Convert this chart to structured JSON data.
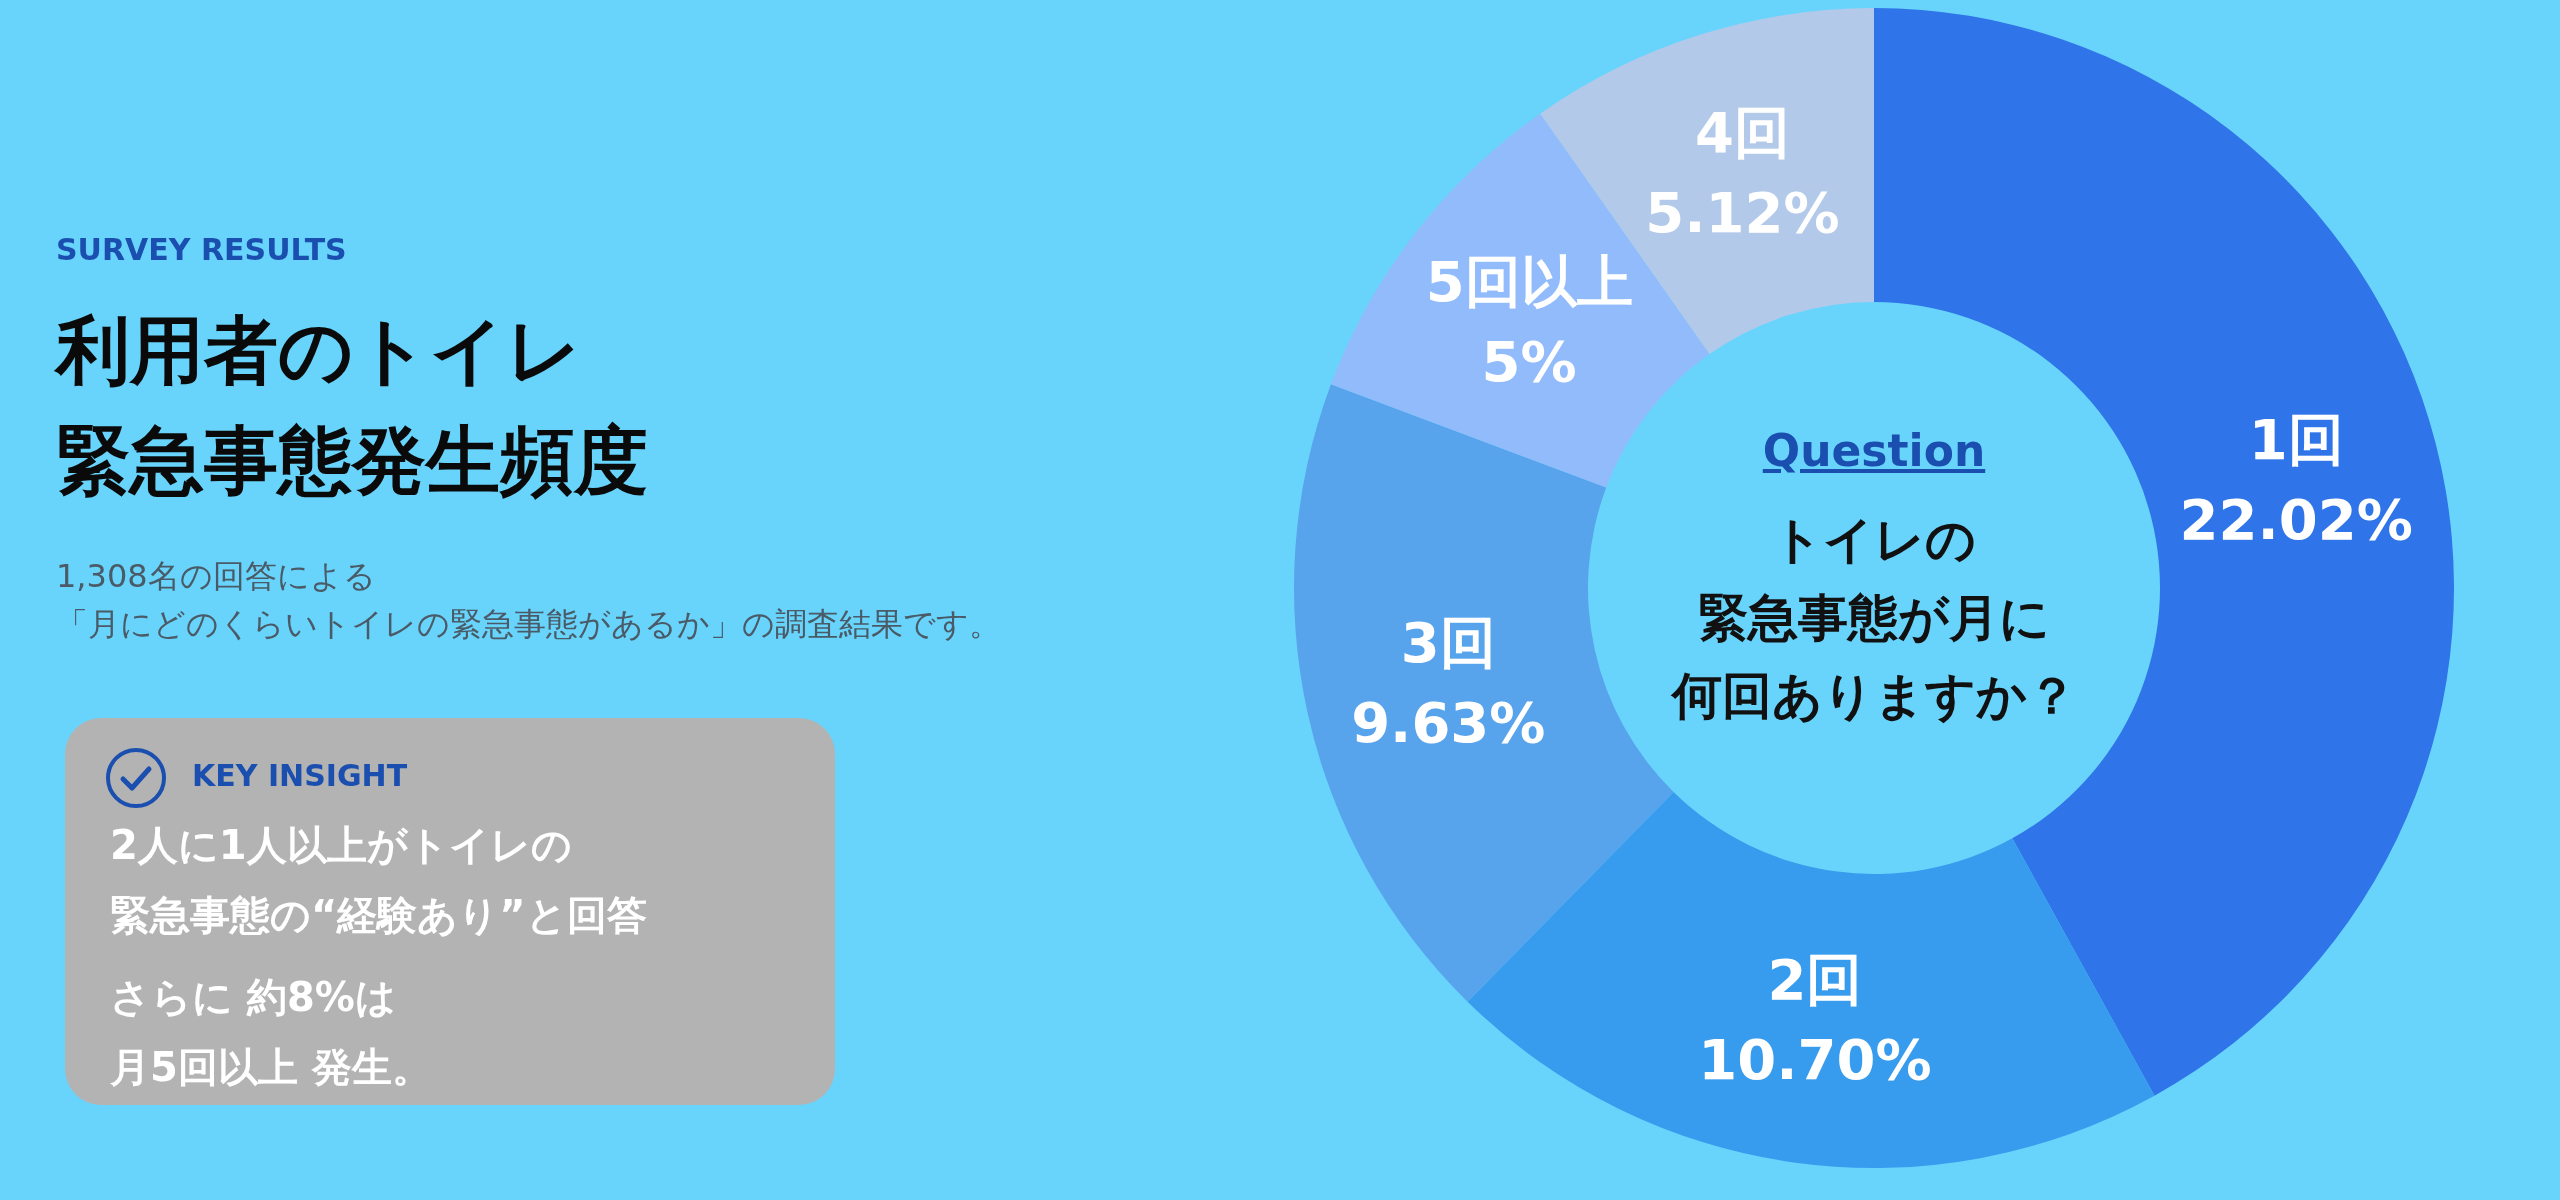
{
  "chart_data": {
    "type": "donut",
    "title": "利用者のトイレ",
    "subtitle": "緊急事態発生頻度",
    "categories": [
      "1回",
      "2回",
      "3回",
      "5回以上",
      "4回"
    ],
    "values": [
      22.02,
      10.7,
      9.63,
      5,
      5.12
    ],
    "value_labels": [
      "22.02%",
      "10.70%",
      "9.63%",
      "5%",
      "5.12%"
    ],
    "colors": [
      "#2f74e8",
      "#389cee",
      "#57a3ec",
      "#92bbfc",
      "#b2c9ea"
    ],
    "annotations": [
      "SURVEY RESULTS",
      "1,308名の回答による",
      "「月にどのくらいトイレの緊急事態があるか」の調査結果です。",
      "KEY INSIGHT",
      "2人に1人以上がトイレの",
      "緊急事態の“経験あり”と回答",
      "さらに 約8%は",
      "月5回以上 発生。",
      "Question",
      "トイレの",
      "緊急事態が月に",
      "何回ありますか？"
    ]
  }
}
